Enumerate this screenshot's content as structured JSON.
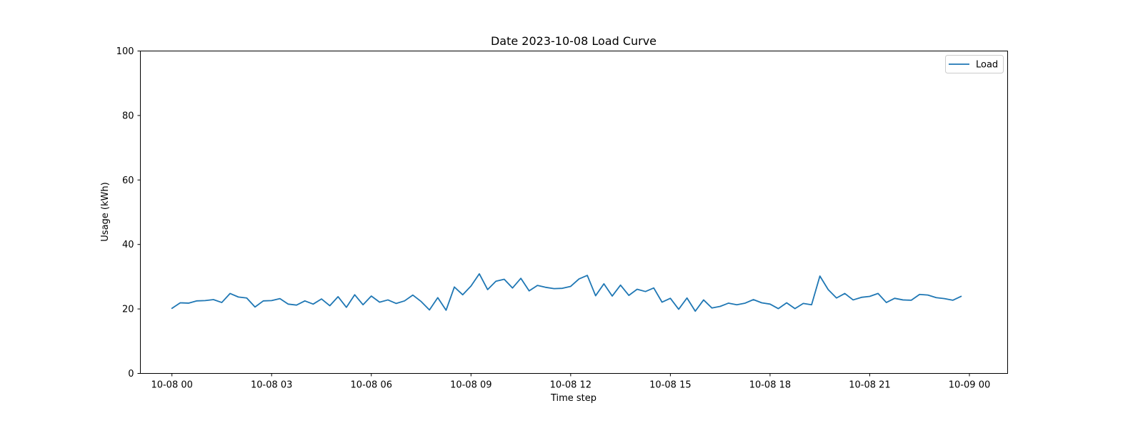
{
  "chart_data": {
    "type": "line",
    "title": "Date 2023-10-08 Load Curve",
    "xlabel": "Time step",
    "ylabel": "Usage (kWh)",
    "ylim": [
      0,
      100
    ],
    "yticks": [
      0,
      20,
      40,
      60,
      80,
      100
    ],
    "xlim_hours": [
      -0.95,
      25.15
    ],
    "xticks": [
      {
        "hour": 0,
        "label": "10-08 00"
      },
      {
        "hour": 3,
        "label": "10-08 03"
      },
      {
        "hour": 6,
        "label": "10-08 06"
      },
      {
        "hour": 9,
        "label": "10-08 09"
      },
      {
        "hour": 12,
        "label": "10-08 12"
      },
      {
        "hour": 15,
        "label": "10-08 15"
      },
      {
        "hour": 18,
        "label": "10-08 18"
      },
      {
        "hour": 21,
        "label": "10-08 21"
      },
      {
        "hour": 24,
        "label": "10-09 00"
      }
    ],
    "x_step_hours": 0.25,
    "grid": false,
    "legend_position": "top-right",
    "series": [
      {
        "name": "Load",
        "color": "#1f77b4",
        "values": [
          20.2,
          21.9,
          21.8,
          22.5,
          22.6,
          22.9,
          22.0,
          24.8,
          23.7,
          23.4,
          20.6,
          22.5,
          22.6,
          23.2,
          21.5,
          21.2,
          22.5,
          21.5,
          23.1,
          21.0,
          23.8,
          20.5,
          24.4,
          21.3,
          24.0,
          22.1,
          22.8,
          21.7,
          22.5,
          24.3,
          22.3,
          19.7,
          23.5,
          19.6,
          26.8,
          24.4,
          27.1,
          30.9,
          26.0,
          28.6,
          29.2,
          26.5,
          29.5,
          25.6,
          27.3,
          26.7,
          26.3,
          26.4,
          27.0,
          29.3,
          30.4,
          24.1,
          27.8,
          24.0,
          27.4,
          24.2,
          26.1,
          25.4,
          26.5,
          22.1,
          23.3,
          19.9,
          23.4,
          19.3,
          22.8,
          20.3,
          20.8,
          21.8,
          21.3,
          21.8,
          22.9,
          21.9,
          21.5,
          20.1,
          21.9,
          20.1,
          21.7,
          21.3,
          30.2,
          26.0,
          23.4,
          24.8,
          22.8,
          23.6,
          23.9,
          24.8,
          22.0,
          23.3,
          22.8,
          22.7,
          24.5,
          24.3,
          23.5,
          23.2,
          22.7,
          23.9
        ]
      }
    ]
  }
}
